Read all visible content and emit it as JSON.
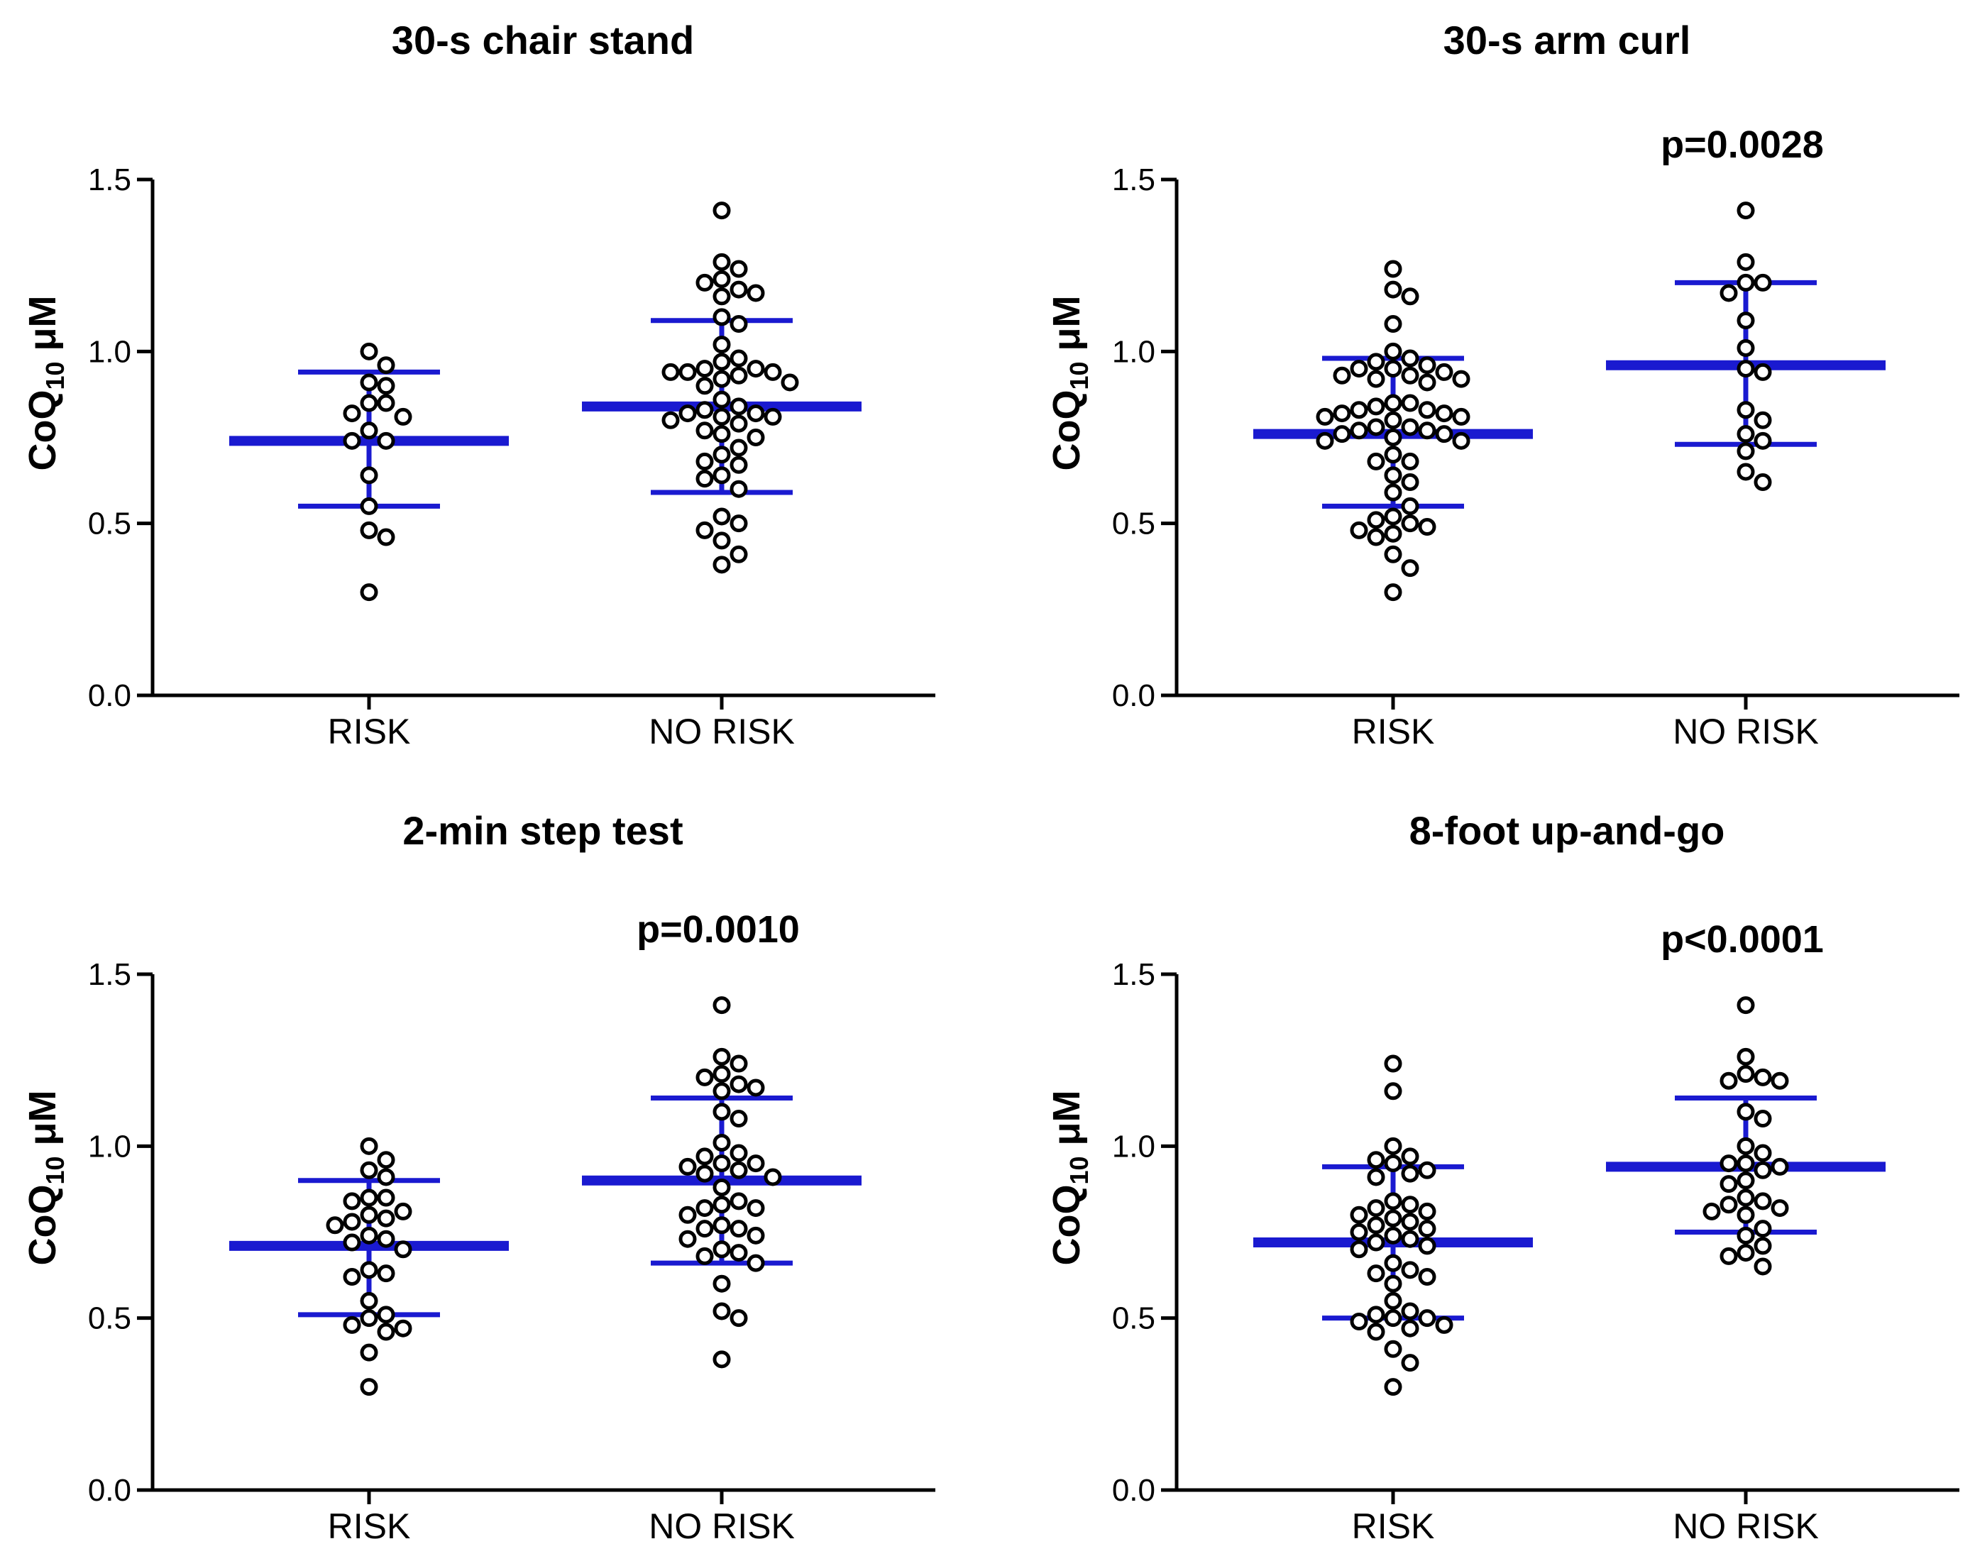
{
  "chart_data": [
    {
      "type": "scatter",
      "title": "30-s chair stand",
      "ylabel": "CoQ10 μM",
      "ylim": [
        0,
        1.5
      ],
      "yticks": [
        0.0,
        0.5,
        1.0,
        1.5
      ],
      "ytick_labels": [
        "0.0",
        "0.5",
        "1.0",
        "1.5"
      ],
      "categories": [
        "RISK",
        "NO RISK"
      ],
      "pvalue": "",
      "groups": [
        {
          "name": "RISK",
          "mean": 0.74,
          "sd_upper": 0.94,
          "sd_lower": 0.55,
          "values": [
            1.0,
            0.96,
            0.91,
            0.9,
            0.85,
            0.85,
            0.82,
            0.81,
            0.77,
            0.74,
            0.74,
            0.64,
            0.55,
            0.48,
            0.46,
            0.3
          ]
        },
        {
          "name": "NO RISK",
          "mean": 0.84,
          "sd_upper": 1.09,
          "sd_lower": 0.59,
          "values": [
            1.41,
            1.26,
            1.24,
            1.21,
            1.2,
            1.18,
            1.17,
            1.16,
            1.1,
            1.08,
            1.02,
            0.98,
            0.97,
            0.95,
            0.95,
            0.94,
            0.94,
            0.94,
            0.93,
            0.92,
            0.91,
            0.9,
            0.86,
            0.84,
            0.83,
            0.82,
            0.82,
            0.81,
            0.81,
            0.8,
            0.79,
            0.77,
            0.76,
            0.75,
            0.72,
            0.7,
            0.68,
            0.67,
            0.64,
            0.63,
            0.6,
            0.52,
            0.5,
            0.48,
            0.45,
            0.41,
            0.38
          ]
        }
      ]
    },
    {
      "type": "scatter",
      "title": "30-s arm curl",
      "ylabel": "CoQ10 μM",
      "ylim": [
        0,
        1.5
      ],
      "yticks": [
        0.0,
        0.5,
        1.0,
        1.5
      ],
      "ytick_labels": [
        "0.0",
        "0.5",
        "1.0",
        "1.5"
      ],
      "categories": [
        "RISK",
        "NO RISK"
      ],
      "pvalue": "p=0.0028",
      "groups": [
        {
          "name": "RISK",
          "mean": 0.76,
          "sd_upper": 0.98,
          "sd_lower": 0.55,
          "values": [
            1.24,
            1.18,
            1.16,
            1.08,
            1.0,
            0.98,
            0.97,
            0.96,
            0.95,
            0.95,
            0.94,
            0.93,
            0.93,
            0.92,
            0.92,
            0.91,
            0.85,
            0.85,
            0.84,
            0.83,
            0.83,
            0.82,
            0.82,
            0.81,
            0.81,
            0.8,
            0.78,
            0.78,
            0.77,
            0.77,
            0.76,
            0.76,
            0.75,
            0.74,
            0.74,
            0.7,
            0.68,
            0.68,
            0.64,
            0.62,
            0.59,
            0.55,
            0.52,
            0.51,
            0.5,
            0.49,
            0.48,
            0.47,
            0.46,
            0.41,
            0.37,
            0.3
          ]
        },
        {
          "name": "NO RISK",
          "mean": 0.96,
          "sd_upper": 1.2,
          "sd_lower": 0.73,
          "values": [
            1.41,
            1.26,
            1.2,
            1.2,
            1.17,
            1.09,
            1.01,
            0.95,
            0.94,
            0.83,
            0.8,
            0.76,
            0.74,
            0.71,
            0.65,
            0.62
          ]
        }
      ]
    },
    {
      "type": "scatter",
      "title": "2-min step test",
      "ylabel": "CoQ10 μM",
      "ylim": [
        0,
        1.5
      ],
      "yticks": [
        0.0,
        0.5,
        1.0,
        1.5
      ],
      "ytick_labels": [
        "0.0",
        "0.5",
        "1.0",
        "1.5"
      ],
      "categories": [
        "RISK",
        "NO RISK"
      ],
      "pvalue": "p=0.0010",
      "groups": [
        {
          "name": "RISK",
          "mean": 0.71,
          "sd_upper": 0.9,
          "sd_lower": 0.51,
          "values": [
            1.0,
            0.96,
            0.93,
            0.91,
            0.85,
            0.85,
            0.84,
            0.81,
            0.8,
            0.79,
            0.78,
            0.77,
            0.74,
            0.73,
            0.72,
            0.7,
            0.64,
            0.63,
            0.62,
            0.55,
            0.51,
            0.5,
            0.48,
            0.47,
            0.46,
            0.4,
            0.3
          ]
        },
        {
          "name": "NO RISK",
          "mean": 0.9,
          "sd_upper": 1.14,
          "sd_lower": 0.66,
          "values": [
            1.41,
            1.26,
            1.24,
            1.21,
            1.2,
            1.18,
            1.17,
            1.16,
            1.1,
            1.08,
            1.01,
            0.98,
            0.97,
            0.95,
            0.95,
            0.94,
            0.93,
            0.92,
            0.91,
            0.88,
            0.84,
            0.83,
            0.82,
            0.82,
            0.8,
            0.77,
            0.76,
            0.76,
            0.74,
            0.73,
            0.7,
            0.69,
            0.68,
            0.66,
            0.6,
            0.52,
            0.5,
            0.38
          ]
        }
      ]
    },
    {
      "type": "scatter",
      "title": "8-foot up-and-go",
      "ylabel": "CoQ10 μM",
      "ylim": [
        0,
        1.5
      ],
      "yticks": [
        0.0,
        0.5,
        1.0,
        1.5
      ],
      "ytick_labels": [
        "0.0",
        "0.5",
        "1.0",
        "1.5"
      ],
      "categories": [
        "RISK",
        "NO RISK"
      ],
      "pvalue": "p<0.0001",
      "groups": [
        {
          "name": "RISK",
          "mean": 0.72,
          "sd_upper": 0.94,
          "sd_lower": 0.5,
          "values": [
            1.24,
            1.16,
            1.0,
            0.97,
            0.96,
            0.95,
            0.93,
            0.92,
            0.91,
            0.84,
            0.83,
            0.82,
            0.81,
            0.8,
            0.79,
            0.78,
            0.77,
            0.76,
            0.75,
            0.74,
            0.73,
            0.72,
            0.71,
            0.7,
            0.66,
            0.64,
            0.63,
            0.62,
            0.6,
            0.55,
            0.52,
            0.51,
            0.5,
            0.5,
            0.49,
            0.48,
            0.47,
            0.46,
            0.41,
            0.37,
            0.3
          ]
        },
        {
          "name": "NO RISK",
          "mean": 0.94,
          "sd_upper": 1.14,
          "sd_lower": 0.75,
          "values": [
            1.41,
            1.26,
            1.21,
            1.2,
            1.19,
            1.19,
            1.1,
            1.08,
            1.0,
            0.98,
            0.95,
            0.95,
            0.94,
            0.93,
            0.9,
            0.89,
            0.85,
            0.84,
            0.83,
            0.82,
            0.81,
            0.8,
            0.76,
            0.74,
            0.71,
            0.69,
            0.68,
            0.65
          ]
        }
      ]
    }
  ]
}
